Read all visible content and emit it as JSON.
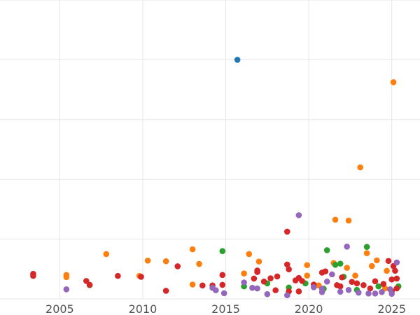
{
  "chart_data": {
    "type": "scatter",
    "title": "",
    "xlabel": "",
    "ylabel": "",
    "grid": true,
    "legend": "none",
    "xlim": [
      2001.4,
      2026.7
    ],
    "ylim": [
      0,
      100
    ],
    "x_ticks": [
      2005,
      2010,
      2015,
      2020,
      2025
    ],
    "y_gridlines": [
      0,
      20,
      40,
      60,
      80,
      100
    ],
    "series": [
      {
        "color": "#1f77b4",
        "points": [
          [
            2015.7,
            80.0
          ]
        ]
      },
      {
        "color": "#ff7f0e",
        "points": [
          [
            2025.1,
            72.5
          ],
          [
            2023.1,
            44.0
          ],
          [
            2021.6,
            26.5
          ],
          [
            2022.4,
            26.2
          ],
          [
            2007.8,
            15.0
          ],
          [
            2013.0,
            16.6
          ],
          [
            2016.4,
            15.0
          ],
          [
            2010.3,
            12.8
          ],
          [
            2011.4,
            12.6
          ],
          [
            2017.0,
            12.5
          ],
          [
            2024.1,
            12.9
          ],
          [
            2023.5,
            15.3
          ],
          [
            2005.4,
            8.0
          ],
          [
            2005.4,
            7.3
          ],
          [
            2009.8,
            7.7
          ],
          [
            2013.4,
            11.7
          ],
          [
            2016.1,
            8.5
          ],
          [
            2019.9,
            11.3
          ],
          [
            2019.9,
            7.8
          ],
          [
            2021.5,
            12.0
          ],
          [
            2022.3,
            10.4
          ],
          [
            2022.8,
            7.8
          ],
          [
            2023.8,
            11.0
          ],
          [
            2024.7,
            9.4
          ],
          [
            2013.0,
            4.8
          ],
          [
            2020.6,
            4.5
          ],
          [
            2024.6,
            3.5
          ]
        ]
      },
      {
        "color": "#2ca02c",
        "points": [
          [
            2014.8,
            16.0
          ],
          [
            2021.1,
            16.3
          ],
          [
            2023.5,
            17.4
          ],
          [
            2021.6,
            11.4
          ],
          [
            2021.9,
            11.8
          ],
          [
            2022.1,
            7.4
          ],
          [
            2006.8,
            4.6
          ],
          [
            2016.1,
            4.2
          ],
          [
            2017.5,
            5.2
          ],
          [
            2018.8,
            3.8
          ],
          [
            2019.8,
            5.2
          ],
          [
            2020.9,
            3.4
          ],
          [
            2022.9,
            3.0
          ],
          [
            2024.2,
            4.2
          ],
          [
            2025.4,
            4.2
          ]
        ]
      },
      {
        "color": "#d62728",
        "points": [
          [
            2018.7,
            22.5
          ],
          [
            2003.4,
            8.4
          ],
          [
            2003.4,
            7.7
          ],
          [
            2006.6,
            6.0
          ],
          [
            2006.8,
            4.7
          ],
          [
            2008.5,
            7.7
          ],
          [
            2009.9,
            7.4
          ],
          [
            2011.4,
            2.7
          ],
          [
            2012.1,
            10.9
          ],
          [
            2013.6,
            4.5
          ],
          [
            2014.2,
            4.5
          ],
          [
            2014.8,
            4.7
          ],
          [
            2014.8,
            8.0
          ],
          [
            2016.7,
            6.8
          ],
          [
            2016.9,
            9.5
          ],
          [
            2016.9,
            9.0
          ],
          [
            2017.3,
            5.8
          ],
          [
            2017.7,
            6.9
          ],
          [
            2018.1,
            7.5
          ],
          [
            2018.0,
            2.9
          ],
          [
            2018.7,
            11.5
          ],
          [
            2018.8,
            9.9
          ],
          [
            2019.2,
            6.2
          ],
          [
            2019.4,
            7.0
          ],
          [
            2019.6,
            6.0
          ],
          [
            2020.8,
            8.8
          ],
          [
            2021.0,
            9.2
          ],
          [
            2021.7,
            4.6
          ],
          [
            2022.0,
            7.2
          ],
          [
            2022.6,
            5.7
          ],
          [
            2022.9,
            5.2
          ],
          [
            2023.3,
            4.6
          ],
          [
            2024.0,
            5.9
          ],
          [
            2024.5,
            5.0
          ],
          [
            2024.8,
            12.7
          ],
          [
            2025.1,
            11.0
          ],
          [
            2025.2,
            9.4
          ],
          [
            2025.3,
            6.8
          ],
          [
            2025.0,
            6.5
          ],
          [
            2018.8,
            2.5
          ],
          [
            2019.4,
            2.5
          ],
          [
            2020.3,
            4.8
          ],
          [
            2021.9,
            4.2
          ],
          [
            2023.7,
            3.5
          ],
          [
            2025.0,
            2.6
          ],
          [
            2025.3,
            3.5
          ]
        ]
      },
      {
        "color": "#9467bd",
        "points": [
          [
            2019.4,
            28.0
          ],
          [
            2022.3,
            17.5
          ],
          [
            2025.3,
            12.2
          ],
          [
            2005.4,
            3.2
          ],
          [
            2014.2,
            3.7
          ],
          [
            2014.4,
            2.9
          ],
          [
            2014.9,
            1.9
          ],
          [
            2016.1,
            5.5
          ],
          [
            2016.6,
            3.7
          ],
          [
            2016.9,
            3.5
          ],
          [
            2017.5,
            1.6
          ],
          [
            2018.7,
            1.2
          ],
          [
            2020.3,
            3.9
          ],
          [
            2020.8,
            3.4
          ],
          [
            2021.1,
            5.8
          ],
          [
            2021.4,
            8.2
          ],
          [
            2021.9,
            2.4
          ],
          [
            2022.4,
            3.0
          ],
          [
            2023.6,
            1.8
          ],
          [
            2024.4,
            2.3
          ],
          [
            2024.9,
            3.2
          ],
          [
            2025.0,
            1.7
          ],
          [
            2020.8,
            2.3
          ],
          [
            2023.0,
            2.1
          ],
          [
            2024.0,
            1.8
          ]
        ]
      }
    ]
  }
}
